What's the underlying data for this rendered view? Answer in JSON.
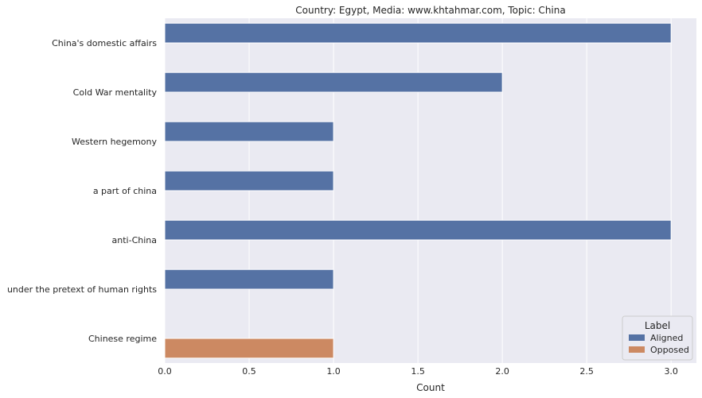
{
  "chart_data": {
    "type": "bar",
    "orientation": "horizontal",
    "title": "Country: Egypt, Media: www.khtahmar.com, Topic: China",
    "xlabel": "Count",
    "ylabel": "",
    "xlim": [
      0,
      3.15
    ],
    "xticks": [
      0.0,
      0.5,
      1.0,
      1.5,
      2.0,
      2.5,
      3.0
    ],
    "xtick_labels": [
      "0.0",
      "0.5",
      "1.0",
      "1.5",
      "2.0",
      "2.5",
      "3.0"
    ],
    "grid": true,
    "legend_position": "bottom-right",
    "legend_title": "Label",
    "categories": [
      "China's domestic affairs",
      "Cold War mentality",
      "Western hegemony",
      "a part of china",
      "anti-China",
      "under the pretext of human rights",
      "Chinese regime"
    ],
    "series": [
      {
        "name": "Aligned",
        "color": "#5572a4",
        "values": [
          3,
          2,
          1,
          1,
          3,
          1,
          null
        ]
      },
      {
        "name": "Opposed",
        "color": "#cc8962",
        "values": [
          null,
          null,
          null,
          null,
          null,
          null,
          1
        ]
      }
    ]
  }
}
